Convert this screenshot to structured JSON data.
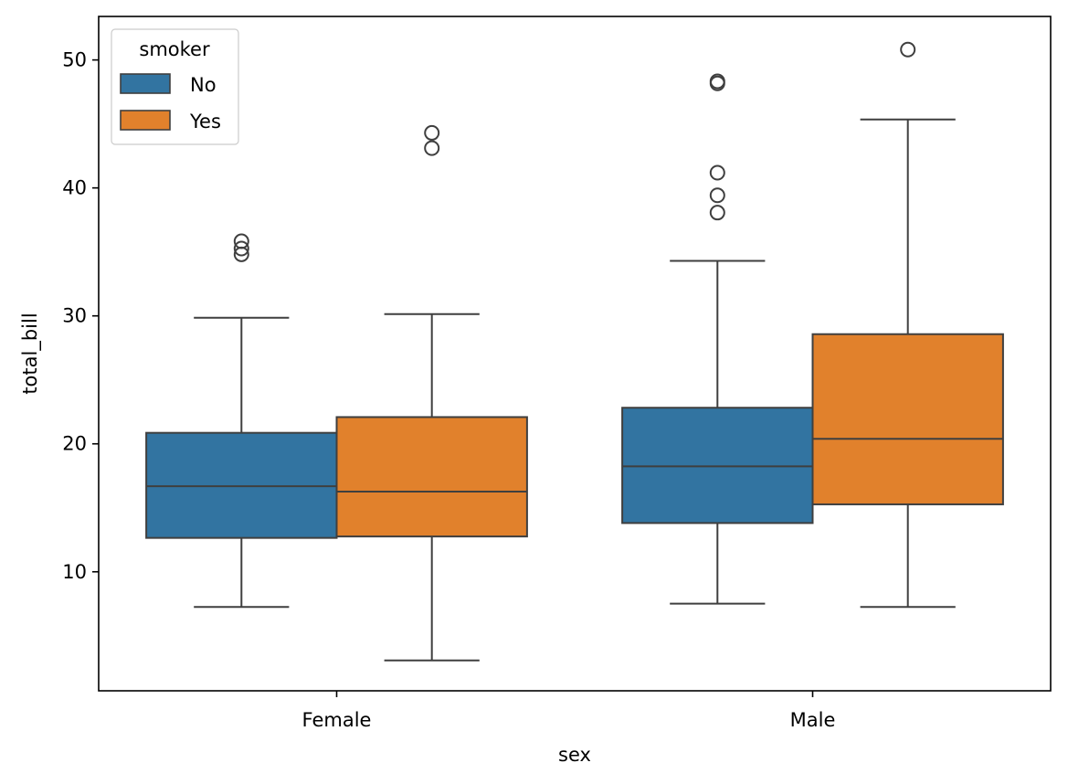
{
  "chart_data": {
    "type": "box",
    "xlabel": "sex",
    "ylabel": "total_bill",
    "categories": [
      "Female",
      "Male"
    ],
    "ylim": [
      0.7,
      53.4
    ],
    "yticks": [
      10,
      20,
      30,
      40,
      50
    ],
    "legend": {
      "title": "smoker",
      "placement": "top-left"
    },
    "series": [
      {
        "name": "No",
        "color": "#3274a1",
        "boxes": [
          {
            "category": "Female",
            "whisker_low": 7.25,
            "q1": 12.65,
            "median": 16.69,
            "q3": 20.86,
            "whisker_high": 29.85,
            "outliers": [
              35.83,
              35.26,
              34.81
            ]
          },
          {
            "category": "Male",
            "whisker_low": 7.51,
            "q1": 13.81,
            "median": 18.24,
            "q3": 22.82,
            "whisker_high": 34.3,
            "outliers": [
              48.33,
              48.17,
              41.19,
              39.42,
              38.07
            ]
          }
        ]
      },
      {
        "name": "Yes",
        "color": "#e1812c",
        "boxes": [
          {
            "category": "Female",
            "whisker_low": 3.07,
            "q1": 12.76,
            "median": 16.27,
            "q3": 22.09,
            "whisker_high": 30.14,
            "outliers": [
              44.3,
              43.11
            ]
          },
          {
            "category": "Male",
            "whisker_low": 7.25,
            "q1": 15.27,
            "median": 20.39,
            "q3": 28.57,
            "whisker_high": 45.35,
            "outliers": [
              50.81
            ]
          }
        ]
      }
    ]
  }
}
